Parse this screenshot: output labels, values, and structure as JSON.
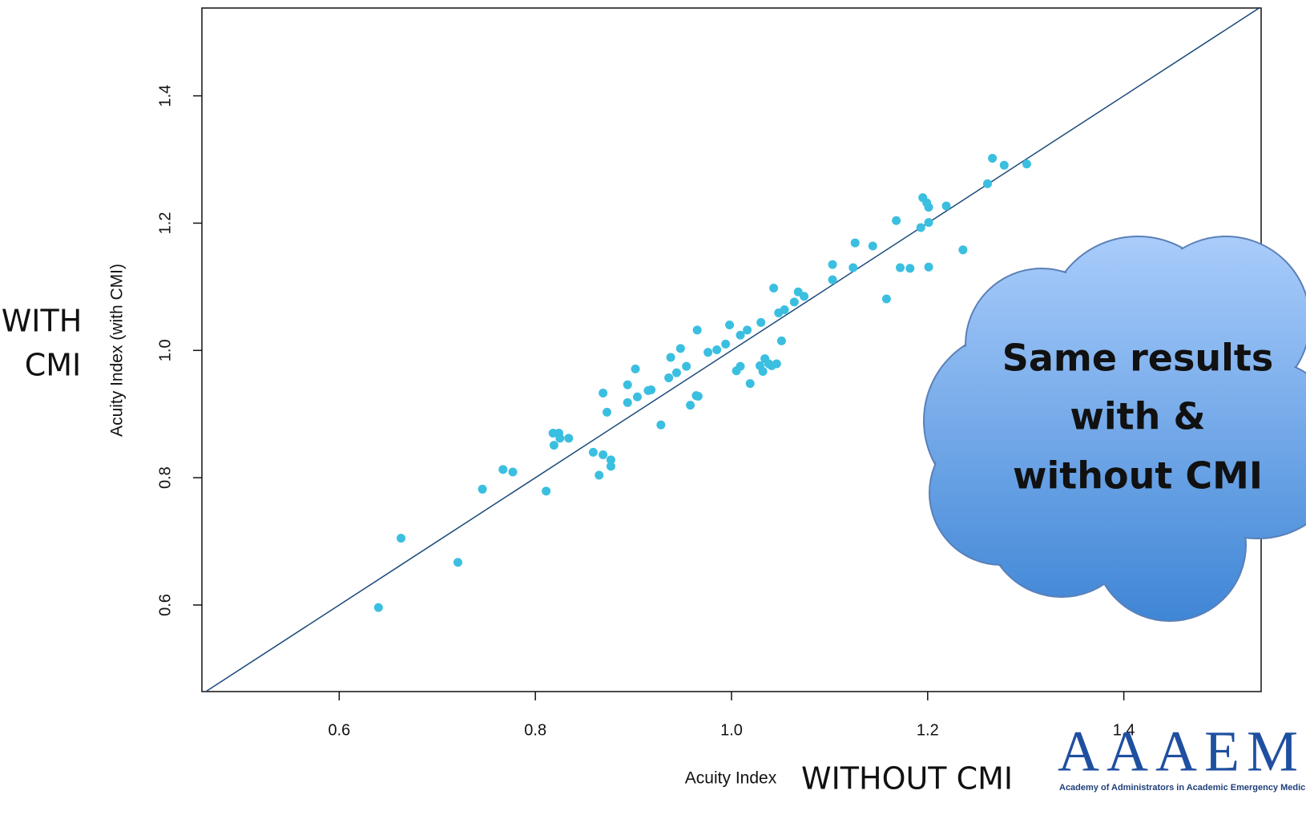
{
  "chart_data": {
    "type": "scatter",
    "x_label": "Acuity Index",
    "y_label": "Acuity Index (with CMI)",
    "annotations": {
      "y_side": [
        "WITH",
        "CMI"
      ],
      "x_side": "WITHOUT CMI",
      "callout": [
        "Same results",
        "with &",
        "without CMI"
      ]
    },
    "identity_line": true,
    "color": "#3bbfe0",
    "line_color": "#1b4a7a",
    "xlim": [
      0.46,
      1.54
    ],
    "ylim": [
      0.464,
      1.538
    ],
    "xticks": [
      0.6,
      0.8,
      {
        "value": 1,
        "label": "1.0"
      },
      1.2,
      1.4
    ],
    "yticks": [
      0.6,
      0.8,
      {
        "value": 1,
        "label": "1.0"
      },
      1.2,
      1.4
    ],
    "x": [
      0.64,
      0.663,
      0.721,
      0.746,
      0.767,
      0.777,
      0.811,
      0.818,
      0.819,
      0.824,
      0.825,
      0.834,
      0.859,
      0.865,
      0.869,
      0.869,
      0.873,
      0.877,
      0.877,
      0.894,
      0.894,
      0.902,
      0.904,
      0.915,
      0.918,
      0.928,
      0.936,
      0.938,
      0.944,
      0.948,
      0.954,
      0.958,
      0.964,
      0.966,
      0.965,
      0.976,
      0.985,
      0.994,
      0.998,
      1.005,
      1.009,
      1.009,
      1.016,
      1.019,
      1.029,
      1.03,
      1.032,
      1.034,
      1.038,
      1.041,
      1.046,
      1.043,
      1.048,
      1.051,
      1.054,
      1.064,
      1.068,
      1.074,
      1.103,
      1.103,
      1.124,
      1.126,
      1.144,
      1.158,
      1.168,
      1.172,
      1.182,
      1.193,
      1.195,
      1.199,
      1.201,
      1.201,
      1.201,
      1.219,
      1.236,
      1.261,
      1.266,
      1.278,
      1.301
    ],
    "y": [
      0.596,
      0.705,
      0.667,
      0.782,
      0.813,
      0.809,
      0.779,
      0.87,
      0.851,
      0.87,
      0.862,
      0.862,
      0.84,
      0.804,
      0.933,
      0.836,
      0.903,
      0.828,
      0.818,
      0.918,
      0.946,
      0.971,
      0.927,
      0.937,
      0.938,
      0.883,
      0.957,
      0.989,
      0.965,
      1.003,
      0.975,
      0.914,
      0.929,
      0.928,
      1.032,
      0.997,
      1.001,
      1.01,
      1.04,
      0.968,
      0.975,
      1.024,
      1.032,
      0.948,
      0.976,
      1.044,
      0.967,
      0.987,
      0.979,
      0.976,
      0.979,
      1.098,
      1.059,
      1.015,
      1.064,
      1.076,
      1.092,
      1.085,
      1.135,
      1.111,
      1.13,
      1.169,
      1.164,
      1.081,
      1.204,
      1.13,
      1.129,
      1.193,
      1.24,
      1.232,
      1.225,
      1.201,
      1.131,
      1.227,
      1.158,
      1.262,
      1.302,
      1.291,
      1.293
    ]
  },
  "logo": {
    "mark": "AAAEM",
    "caption": "Academy of Administrators in Academic Emergency Medicine"
  }
}
